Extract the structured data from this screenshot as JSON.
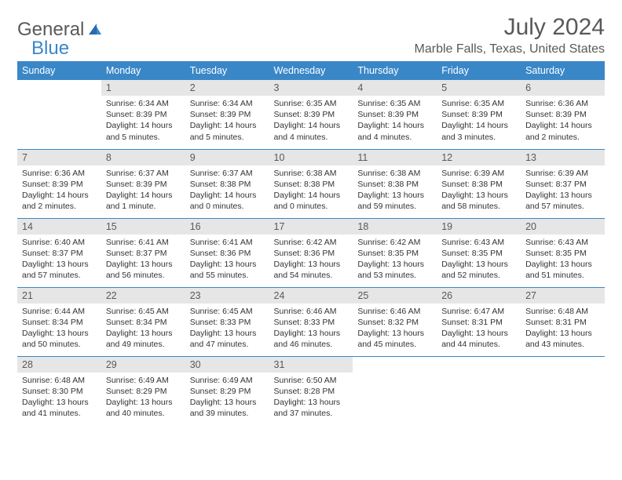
{
  "brand": {
    "part1": "General",
    "part2": "Blue"
  },
  "title": "July 2024",
  "location": "Marble Falls, Texas, United States",
  "colors": {
    "header_bg": "#3a87c8",
    "header_text": "#ffffff",
    "daynum_bg": "#e6e6e6",
    "daynum_text": "#595959",
    "body_text": "#333333",
    "rule": "#3a87c8",
    "page_bg": "#ffffff"
  },
  "fonts": {
    "title_size_pt": 30,
    "location_size_pt": 16,
    "dayhead_size_pt": 12.5,
    "body_size_pt": 10.5
  },
  "weekdays": [
    "Sunday",
    "Monday",
    "Tuesday",
    "Wednesday",
    "Thursday",
    "Friday",
    "Saturday"
  ],
  "weeks": [
    [
      {
        "n": "",
        "sunrise": "",
        "sunset": "",
        "daylight": ""
      },
      {
        "n": "1",
        "sunrise": "Sunrise: 6:34 AM",
        "sunset": "Sunset: 8:39 PM",
        "daylight": "Daylight: 14 hours and 5 minutes."
      },
      {
        "n": "2",
        "sunrise": "Sunrise: 6:34 AM",
        "sunset": "Sunset: 8:39 PM",
        "daylight": "Daylight: 14 hours and 5 minutes."
      },
      {
        "n": "3",
        "sunrise": "Sunrise: 6:35 AM",
        "sunset": "Sunset: 8:39 PM",
        "daylight": "Daylight: 14 hours and 4 minutes."
      },
      {
        "n": "4",
        "sunrise": "Sunrise: 6:35 AM",
        "sunset": "Sunset: 8:39 PM",
        "daylight": "Daylight: 14 hours and 4 minutes."
      },
      {
        "n": "5",
        "sunrise": "Sunrise: 6:35 AM",
        "sunset": "Sunset: 8:39 PM",
        "daylight": "Daylight: 14 hours and 3 minutes."
      },
      {
        "n": "6",
        "sunrise": "Sunrise: 6:36 AM",
        "sunset": "Sunset: 8:39 PM",
        "daylight": "Daylight: 14 hours and 2 minutes."
      }
    ],
    [
      {
        "n": "7",
        "sunrise": "Sunrise: 6:36 AM",
        "sunset": "Sunset: 8:39 PM",
        "daylight": "Daylight: 14 hours and 2 minutes."
      },
      {
        "n": "8",
        "sunrise": "Sunrise: 6:37 AM",
        "sunset": "Sunset: 8:39 PM",
        "daylight": "Daylight: 14 hours and 1 minute."
      },
      {
        "n": "9",
        "sunrise": "Sunrise: 6:37 AM",
        "sunset": "Sunset: 8:38 PM",
        "daylight": "Daylight: 14 hours and 0 minutes."
      },
      {
        "n": "10",
        "sunrise": "Sunrise: 6:38 AM",
        "sunset": "Sunset: 8:38 PM",
        "daylight": "Daylight: 14 hours and 0 minutes."
      },
      {
        "n": "11",
        "sunrise": "Sunrise: 6:38 AM",
        "sunset": "Sunset: 8:38 PM",
        "daylight": "Daylight: 13 hours and 59 minutes."
      },
      {
        "n": "12",
        "sunrise": "Sunrise: 6:39 AM",
        "sunset": "Sunset: 8:38 PM",
        "daylight": "Daylight: 13 hours and 58 minutes."
      },
      {
        "n": "13",
        "sunrise": "Sunrise: 6:39 AM",
        "sunset": "Sunset: 8:37 PM",
        "daylight": "Daylight: 13 hours and 57 minutes."
      }
    ],
    [
      {
        "n": "14",
        "sunrise": "Sunrise: 6:40 AM",
        "sunset": "Sunset: 8:37 PM",
        "daylight": "Daylight: 13 hours and 57 minutes."
      },
      {
        "n": "15",
        "sunrise": "Sunrise: 6:41 AM",
        "sunset": "Sunset: 8:37 PM",
        "daylight": "Daylight: 13 hours and 56 minutes."
      },
      {
        "n": "16",
        "sunrise": "Sunrise: 6:41 AM",
        "sunset": "Sunset: 8:36 PM",
        "daylight": "Daylight: 13 hours and 55 minutes."
      },
      {
        "n": "17",
        "sunrise": "Sunrise: 6:42 AM",
        "sunset": "Sunset: 8:36 PM",
        "daylight": "Daylight: 13 hours and 54 minutes."
      },
      {
        "n": "18",
        "sunrise": "Sunrise: 6:42 AM",
        "sunset": "Sunset: 8:35 PM",
        "daylight": "Daylight: 13 hours and 53 minutes."
      },
      {
        "n": "19",
        "sunrise": "Sunrise: 6:43 AM",
        "sunset": "Sunset: 8:35 PM",
        "daylight": "Daylight: 13 hours and 52 minutes."
      },
      {
        "n": "20",
        "sunrise": "Sunrise: 6:43 AM",
        "sunset": "Sunset: 8:35 PM",
        "daylight": "Daylight: 13 hours and 51 minutes."
      }
    ],
    [
      {
        "n": "21",
        "sunrise": "Sunrise: 6:44 AM",
        "sunset": "Sunset: 8:34 PM",
        "daylight": "Daylight: 13 hours and 50 minutes."
      },
      {
        "n": "22",
        "sunrise": "Sunrise: 6:45 AM",
        "sunset": "Sunset: 8:34 PM",
        "daylight": "Daylight: 13 hours and 49 minutes."
      },
      {
        "n": "23",
        "sunrise": "Sunrise: 6:45 AM",
        "sunset": "Sunset: 8:33 PM",
        "daylight": "Daylight: 13 hours and 47 minutes."
      },
      {
        "n": "24",
        "sunrise": "Sunrise: 6:46 AM",
        "sunset": "Sunset: 8:33 PM",
        "daylight": "Daylight: 13 hours and 46 minutes."
      },
      {
        "n": "25",
        "sunrise": "Sunrise: 6:46 AM",
        "sunset": "Sunset: 8:32 PM",
        "daylight": "Daylight: 13 hours and 45 minutes."
      },
      {
        "n": "26",
        "sunrise": "Sunrise: 6:47 AM",
        "sunset": "Sunset: 8:31 PM",
        "daylight": "Daylight: 13 hours and 44 minutes."
      },
      {
        "n": "27",
        "sunrise": "Sunrise: 6:48 AM",
        "sunset": "Sunset: 8:31 PM",
        "daylight": "Daylight: 13 hours and 43 minutes."
      }
    ],
    [
      {
        "n": "28",
        "sunrise": "Sunrise: 6:48 AM",
        "sunset": "Sunset: 8:30 PM",
        "daylight": "Daylight: 13 hours and 41 minutes."
      },
      {
        "n": "29",
        "sunrise": "Sunrise: 6:49 AM",
        "sunset": "Sunset: 8:29 PM",
        "daylight": "Daylight: 13 hours and 40 minutes."
      },
      {
        "n": "30",
        "sunrise": "Sunrise: 6:49 AM",
        "sunset": "Sunset: 8:29 PM",
        "daylight": "Daylight: 13 hours and 39 minutes."
      },
      {
        "n": "31",
        "sunrise": "Sunrise: 6:50 AM",
        "sunset": "Sunset: 8:28 PM",
        "daylight": "Daylight: 13 hours and 37 minutes."
      },
      {
        "n": "",
        "sunrise": "",
        "sunset": "",
        "daylight": ""
      },
      {
        "n": "",
        "sunrise": "",
        "sunset": "",
        "daylight": ""
      },
      {
        "n": "",
        "sunrise": "",
        "sunset": "",
        "daylight": ""
      }
    ]
  ]
}
